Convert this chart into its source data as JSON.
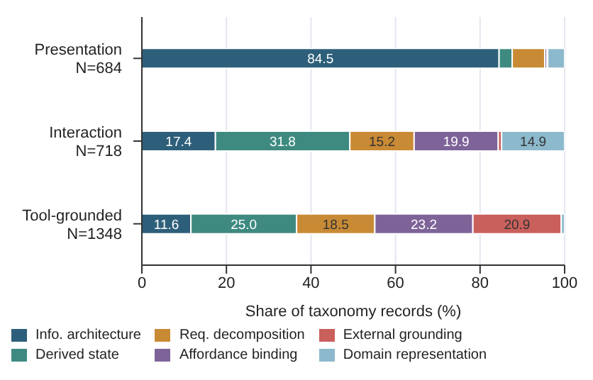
{
  "chart_data": {
    "type": "bar",
    "orientation": "horizontal",
    "stacked": true,
    "categories": [
      "Presentation\nN=684",
      "Interaction\nN=718",
      "Tool-grounded\nN=1348"
    ],
    "xlabel": "Share of taxonomy records (%)",
    "xlim": [
      0,
      100
    ],
    "xticks": [
      0,
      20,
      40,
      60,
      80,
      100
    ],
    "grid": "x",
    "legend": "bottom",
    "series": [
      {
        "name": "Info. architecture",
        "color": "#2e5f7a",
        "values": [
          84.5,
          17.4,
          11.6
        ],
        "value_labels": [
          "84.5",
          "17.4",
          "11.6"
        ]
      },
      {
        "name": "Derived state",
        "color": "#3e8a80",
        "values": [
          3.1,
          31.8,
          25.0
        ],
        "value_labels": [
          null,
          "31.8",
          "25.0"
        ]
      },
      {
        "name": "Req. decomposition",
        "color": "#c98a35",
        "values": [
          7.7,
          15.2,
          18.5
        ],
        "value_labels": [
          null,
          "15.2",
          "18.5"
        ]
      },
      {
        "name": "Affordance binding",
        "color": "#7e6399",
        "values": [
          0.5,
          19.9,
          23.2
        ],
        "value_labels": [
          null,
          "19.9",
          "23.2"
        ]
      },
      {
        "name": "External grounding",
        "color": "#c9605c",
        "values": [
          0.2,
          0.8,
          20.9
        ],
        "value_labels": [
          null,
          null,
          "20.9"
        ]
      },
      {
        "name": "Domain representation",
        "color": "#8db9cc",
        "values": [
          4.0,
          14.9,
          0.8
        ],
        "value_labels": [
          null,
          "14.9",
          null
        ]
      }
    ]
  }
}
